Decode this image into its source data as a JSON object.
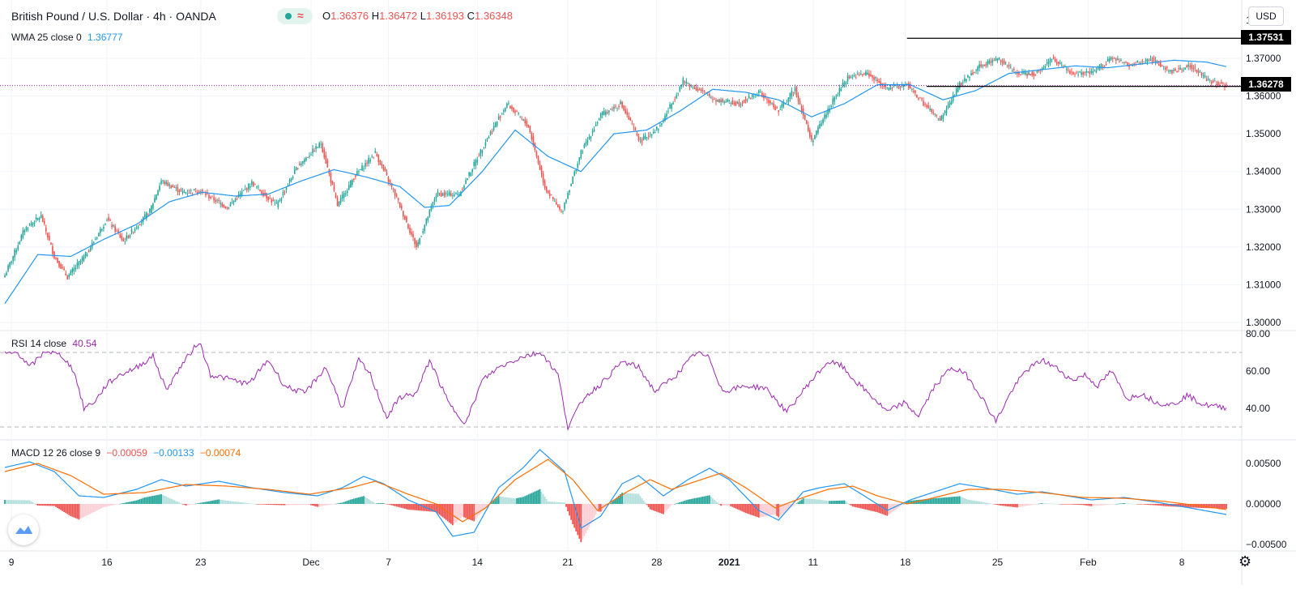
{
  "header": {
    "symbol": "British Pound / U.S. Dollar · 4h · OANDA",
    "o_label": "O",
    "o_value": "1.36376",
    "h_label": "H",
    "h_value": "1.36472",
    "l_label": "L",
    "l_value": "1.36193",
    "c_label": "C",
    "c_value": "1.36348",
    "wave_glyph": "≈",
    "currency": "USD"
  },
  "colors": {
    "up": "#26a69a",
    "down": "#ef5350",
    "wma": "#2196f3",
    "rsi": "#9c27b0",
    "macd": "#2196f3",
    "signal": "#ff6d00",
    "hist_up_strong": "#26a69a",
    "hist_up_weak": "#b2dfdb",
    "hist_down_strong": "#ef5350",
    "hist_down_weak": "#ffcdd2",
    "current_price_line": "#9c27b0"
  },
  "legends": {
    "wma_label": "WMA 25 close 0",
    "wma_value": "1.36777",
    "rsi_label": "RSI 14 close",
    "rsi_value": "40.54",
    "macd_label": "MACD 12 26 close 9",
    "macd_hist_value": "−0.00059",
    "macd_value": "−0.00133",
    "macd_signal_value": "−0.00074"
  },
  "price_tags": {
    "resistance": "1.37531",
    "current": "1.36278"
  },
  "chart_data": [
    {
      "type": "candlestick",
      "title": "British Pound / U.S. Dollar · 4h · OANDA",
      "ylim": [
        1.3,
        1.38
      ],
      "yticks": [
        "1.37000",
        "1.36000",
        "1.35000",
        "1.34000",
        "1.33000",
        "1.32000",
        "1.31000",
        "1.30000"
      ],
      "ytick_values": [
        1.37,
        1.36,
        1.35,
        1.34,
        1.33,
        1.32,
        1.31,
        1.3
      ],
      "top_tick_partial": "1",
      "xticks": [
        "9",
        "16",
        "23",
        "Dec",
        "7",
        "14",
        "21",
        "28",
        "2021",
        "11",
        "18",
        "25",
        "Feb",
        "8"
      ],
      "close_anchors": [
        [
          0,
          1.3125
        ],
        [
          12,
          1.3248
        ],
        [
          22,
          1.3282
        ],
        [
          30,
          1.3175
        ],
        [
          38,
          1.312
        ],
        [
          50,
          1.3185
        ],
        [
          62,
          1.3275
        ],
        [
          72,
          1.3215
        ],
        [
          88,
          1.3295
        ],
        [
          95,
          1.3375
        ],
        [
          108,
          1.3345
        ],
        [
          118,
          1.335
        ],
        [
          135,
          1.3305
        ],
        [
          150,
          1.337
        ],
        [
          165,
          1.331
        ],
        [
          178,
          1.3415
        ],
        [
          192,
          1.3475
        ],
        [
          202,
          1.331
        ],
        [
          212,
          1.3385
        ],
        [
          225,
          1.345
        ],
        [
          238,
          1.333
        ],
        [
          250,
          1.32
        ],
        [
          262,
          1.334
        ],
        [
          276,
          1.334
        ],
        [
          292,
          1.348
        ],
        [
          305,
          1.358
        ],
        [
          318,
          1.352
        ],
        [
          328,
          1.336
        ],
        [
          338,
          1.329
        ],
        [
          350,
          1.345
        ],
        [
          362,
          1.355
        ],
        [
          374,
          1.358
        ],
        [
          386,
          1.348
        ],
        [
          398,
          1.352
        ],
        [
          412,
          1.364
        ],
        [
          424,
          1.361
        ],
        [
          432,
          1.359
        ],
        [
          446,
          1.358
        ],
        [
          458,
          1.361
        ],
        [
          470,
          1.356
        ],
        [
          480,
          1.362
        ],
        [
          490,
          1.348
        ],
        [
          502,
          1.358
        ],
        [
          512,
          1.365
        ],
        [
          524,
          1.366
        ],
        [
          536,
          1.362
        ],
        [
          548,
          1.363
        ],
        [
          558,
          1.358
        ],
        [
          568,
          1.3535
        ],
        [
          580,
          1.363
        ],
        [
          592,
          1.368
        ],
        [
          604,
          1.37
        ],
        [
          614,
          1.366
        ],
        [
          626,
          1.366
        ],
        [
          636,
          1.37
        ],
        [
          648,
          1.366
        ],
        [
          660,
          1.366
        ],
        [
          672,
          1.37
        ],
        [
          684,
          1.368
        ],
        [
          696,
          1.37
        ],
        [
          708,
          1.3665
        ],
        [
          720,
          1.368
        ],
        [
          732,
          1.364
        ],
        [
          742,
          1.3628
        ]
      ],
      "wma_anchors": [
        [
          0,
          1.305
        ],
        [
          20,
          1.318
        ],
        [
          40,
          1.3175
        ],
        [
          60,
          1.322
        ],
        [
          80,
          1.326
        ],
        [
          100,
          1.332
        ],
        [
          120,
          1.3345
        ],
        [
          140,
          1.3335
        ],
        [
          160,
          1.334
        ],
        [
          180,
          1.3375
        ],
        [
          200,
          1.3405
        ],
        [
          220,
          1.3385
        ],
        [
          240,
          1.336
        ],
        [
          255,
          1.3305
        ],
        [
          270,
          1.331
        ],
        [
          290,
          1.34
        ],
        [
          310,
          1.351
        ],
        [
          330,
          1.344
        ],
        [
          350,
          1.34
        ],
        [
          370,
          1.35
        ],
        [
          390,
          1.351
        ],
        [
          410,
          1.356
        ],
        [
          430,
          1.3618
        ],
        [
          450,
          1.361
        ],
        [
          470,
          1.359
        ],
        [
          490,
          1.3545
        ],
        [
          510,
          1.358
        ],
        [
          530,
          1.363
        ],
        [
          550,
          1.363
        ],
        [
          570,
          1.359
        ],
        [
          590,
          1.3615
        ],
        [
          610,
          1.366
        ],
        [
          630,
          1.367
        ],
        [
          650,
          1.368
        ],
        [
          670,
          1.3675
        ],
        [
          690,
          1.3685
        ],
        [
          710,
          1.3695
        ],
        [
          730,
          1.369
        ],
        [
          742,
          1.3678
        ]
      ],
      "resistance_level": 1.37531,
      "support_level": 1.36278,
      "current_price": 1.36278
    },
    {
      "type": "line",
      "title": "RSI 14 close",
      "ylim": [
        25,
        82
      ],
      "yticks": [
        "80.00",
        "60.00",
        "40.00"
      ],
      "ytick_values": [
        80,
        60,
        40
      ],
      "bands": [
        70,
        30
      ],
      "anchors": [
        [
          0,
          69
        ],
        [
          8,
          70
        ],
        [
          15,
          62
        ],
        [
          25,
          71
        ],
        [
          35,
          68
        ],
        [
          42,
          60
        ],
        [
          48,
          40
        ],
        [
          55,
          44
        ],
        [
          62,
          53
        ],
        [
          70,
          58
        ],
        [
          80,
          62
        ],
        [
          90,
          68
        ],
        [
          98,
          50
        ],
        [
          108,
          64
        ],
        [
          118,
          76
        ],
        [
          125,
          58
        ],
        [
          135,
          56
        ],
        [
          148,
          53
        ],
        [
          160,
          66
        ],
        [
          170,
          52
        ],
        [
          182,
          48
        ],
        [
          195,
          62
        ],
        [
          205,
          40
        ],
        [
          215,
          66
        ],
        [
          222,
          58
        ],
        [
          232,
          35
        ],
        [
          240,
          46
        ],
        [
          250,
          48
        ],
        [
          258,
          66
        ],
        [
          270,
          42
        ],
        [
          280,
          32
        ],
        [
          290,
          55
        ],
        [
          300,
          62
        ],
        [
          315,
          68
        ],
        [
          326,
          70
        ],
        [
          336,
          58
        ],
        [
          342,
          30
        ],
        [
          352,
          46
        ],
        [
          362,
          53
        ],
        [
          375,
          65
        ],
        [
          385,
          62
        ],
        [
          395,
          49
        ],
        [
          408,
          58
        ],
        [
          420,
          70
        ],
        [
          428,
          67
        ],
        [
          436,
          49
        ],
        [
          450,
          52
        ],
        [
          462,
          51
        ],
        [
          475,
          38
        ],
        [
          488,
          53
        ],
        [
          500,
          65
        ],
        [
          508,
          63
        ],
        [
          516,
          55
        ],
        [
          526,
          47
        ],
        [
          536,
          38
        ],
        [
          546,
          43
        ],
        [
          555,
          36
        ],
        [
          565,
          52
        ],
        [
          575,
          62
        ],
        [
          584,
          58
        ],
        [
          592,
          48
        ],
        [
          602,
          33
        ],
        [
          612,
          50
        ],
        [
          620,
          60
        ],
        [
          630,
          66
        ],
        [
          640,
          61
        ],
        [
          648,
          55
        ],
        [
          656,
          58
        ],
        [
          664,
          52
        ],
        [
          672,
          60
        ],
        [
          682,
          45
        ],
        [
          690,
          48
        ],
        [
          700,
          43
        ],
        [
          710,
          42
        ],
        [
          718,
          47
        ],
        [
          728,
          42
        ],
        [
          736,
          41
        ],
        [
          742,
          40.5
        ]
      ]
    },
    {
      "type": "line+bar",
      "title": "MACD 12 26 close 9",
      "ylim": [
        -0.0055,
        0.0075
      ],
      "yticks": [
        "0.00500",
        "0.00000",
        "−0.00500"
      ],
      "ytick_values": [
        0.005,
        0.0,
        -0.005
      ],
      "macd_anchors": [
        [
          0,
          0.0045
        ],
        [
          15,
          0.0052
        ],
        [
          30,
          0.004
        ],
        [
          45,
          0.001
        ],
        [
          60,
          0.0008
        ],
        [
          80,
          0.0018
        ],
        [
          95,
          0.003
        ],
        [
          110,
          0.0022
        ],
        [
          130,
          0.0028
        ],
        [
          150,
          0.002
        ],
        [
          170,
          0.0014
        ],
        [
          190,
          0.001
        ],
        [
          205,
          0.002
        ],
        [
          218,
          0.0034
        ],
        [
          230,
          0.0025
        ],
        [
          245,
          0.0005
        ],
        [
          262,
          -0.001
        ],
        [
          272,
          -0.004
        ],
        [
          285,
          -0.0035
        ],
        [
          300,
          0.002
        ],
        [
          315,
          0.0045
        ],
        [
          325,
          0.0067
        ],
        [
          340,
          0.004
        ],
        [
          350,
          -0.003
        ],
        [
          362,
          -0.0015
        ],
        [
          375,
          0.0025
        ],
        [
          385,
          0.0035
        ],
        [
          400,
          0.001
        ],
        [
          415,
          0.003
        ],
        [
          428,
          0.0044
        ],
        [
          440,
          0.003
        ],
        [
          458,
          -0.0008
        ],
        [
          470,
          -0.002
        ],
        [
          485,
          0.0015
        ],
        [
          495,
          0.002
        ],
        [
          510,
          0.0025
        ],
        [
          522,
          0.001
        ],
        [
          536,
          -0.0008
        ],
        [
          550,
          0.0005
        ],
        [
          565,
          0.0015
        ],
        [
          580,
          0.0025
        ],
        [
          595,
          0.002
        ],
        [
          615,
          0.0012
        ],
        [
          630,
          0.0015
        ],
        [
          645,
          0.001
        ],
        [
          660,
          0.0005
        ],
        [
          680,
          0.0008
        ],
        [
          700,
          0.0002
        ],
        [
          720,
          -0.0005
        ],
        [
          742,
          -0.0013
        ]
      ],
      "signal_anchors": [
        [
          0,
          0.004
        ],
        [
          20,
          0.005
        ],
        [
          40,
          0.0035
        ],
        [
          60,
          0.0012
        ],
        [
          85,
          0.0014
        ],
        [
          110,
          0.0024
        ],
        [
          135,
          0.0022
        ],
        [
          160,
          0.0018
        ],
        [
          185,
          0.0012
        ],
        [
          210,
          0.002
        ],
        [
          225,
          0.0028
        ],
        [
          245,
          0.0012
        ],
        [
          262,
          0.0
        ],
        [
          278,
          -0.0022
        ],
        [
          292,
          -0.0005
        ],
        [
          310,
          0.003
        ],
        [
          330,
          0.0055
        ],
        [
          345,
          0.003
        ],
        [
          360,
          -0.0008
        ],
        [
          378,
          0.0015
        ],
        [
          392,
          0.003
        ],
        [
          405,
          0.0018
        ],
        [
          420,
          0.0028
        ],
        [
          435,
          0.0038
        ],
        [
          450,
          0.002
        ],
        [
          468,
          -0.0005
        ],
        [
          485,
          0.0008
        ],
        [
          500,
          0.0018
        ],
        [
          515,
          0.0022
        ],
        [
          530,
          0.001
        ],
        [
          548,
          0.0
        ],
        [
          565,
          0.0008
        ],
        [
          585,
          0.0018
        ],
        [
          605,
          0.0018
        ],
        [
          630,
          0.0014
        ],
        [
          655,
          0.0008
        ],
        [
          680,
          0.0007
        ],
        [
          705,
          0.0003
        ],
        [
          725,
          -0.0002
        ],
        [
          742,
          -0.0007
        ]
      ]
    }
  ]
}
